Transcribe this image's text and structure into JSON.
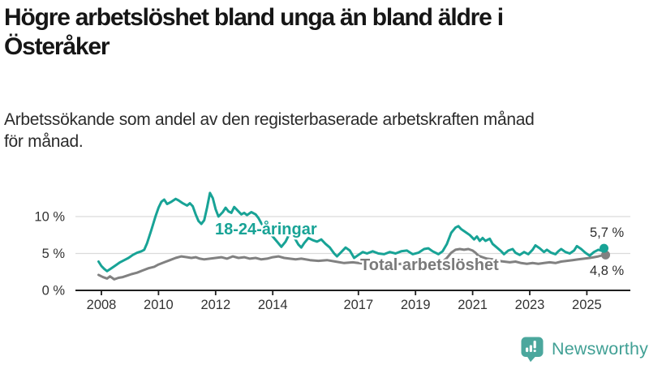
{
  "header": {
    "title_lines": [
      "Högre arbetslöshet bland unga än bland äldre i",
      "Österåker"
    ],
    "subtitle_lines": [
      "Arbetssökande som andel av den registerbaserade arbetskraften månad",
      "för månad."
    ]
  },
  "chart_data": {
    "type": "line",
    "title": "Högre arbetslöshet bland unga än bland äldre i Österåker",
    "subtitle": "Arbetssökande som andel av den registerbaserade arbetskraften månad för månad.",
    "unit": "%",
    "grid": "horizontal-gridlines-at-5-and-10",
    "legend_position": "inline-labels",
    "xlim": [
      2007.1,
      2026.5
    ],
    "ylim": [
      0,
      14.3
    ],
    "x_ticks": [
      2008,
      2010,
      2012,
      2014,
      2017,
      2019,
      2021,
      2023,
      2025
    ],
    "y_ticks": [
      {
        "value": 0,
        "label": "0 %"
      },
      {
        "value": 5,
        "label": "5 %"
      },
      {
        "value": 10,
        "label": "10 %"
      }
    ],
    "colors": {
      "young": "#18a396",
      "total": "#818181",
      "axis": "#1e1e1e",
      "gridline": "#dbdbdb",
      "tick_text": "#333333",
      "end_label_text": "#2e2e2e"
    },
    "series": [
      {
        "name": "18-24-åringar",
        "color": "#18a396",
        "label_color": "#18a396",
        "end_label": "5,7 %",
        "end_value": 5.7,
        "points": [
          [
            2007.9,
            3.9
          ],
          [
            2008.0,
            3.3
          ],
          [
            2008.1,
            2.9
          ],
          [
            2008.2,
            2.6
          ],
          [
            2008.35,
            3.0
          ],
          [
            2008.5,
            3.4
          ],
          [
            2008.65,
            3.8
          ],
          [
            2008.8,
            4.1
          ],
          [
            2008.95,
            4.4
          ],
          [
            2009.1,
            4.8
          ],
          [
            2009.25,
            5.1
          ],
          [
            2009.4,
            5.3
          ],
          [
            2009.5,
            5.5
          ],
          [
            2009.6,
            6.4
          ],
          [
            2009.75,
            8.2
          ],
          [
            2009.9,
            10.1
          ],
          [
            2010.0,
            11.2
          ],
          [
            2010.1,
            12.0
          ],
          [
            2010.2,
            12.3
          ],
          [
            2010.3,
            11.7
          ],
          [
            2010.45,
            12.0
          ],
          [
            2010.6,
            12.4
          ],
          [
            2010.7,
            12.2
          ],
          [
            2010.85,
            11.8
          ],
          [
            2011.0,
            11.5
          ],
          [
            2011.1,
            11.8
          ],
          [
            2011.2,
            11.4
          ],
          [
            2011.3,
            10.3
          ],
          [
            2011.4,
            9.4
          ],
          [
            2011.5,
            9.0
          ],
          [
            2011.6,
            9.5
          ],
          [
            2011.7,
            11.2
          ],
          [
            2011.8,
            13.2
          ],
          [
            2011.9,
            12.5
          ],
          [
            2012.0,
            11.0
          ],
          [
            2012.1,
            10.0
          ],
          [
            2012.25,
            10.6
          ],
          [
            2012.35,
            11.2
          ],
          [
            2012.45,
            10.7
          ],
          [
            2012.55,
            10.5
          ],
          [
            2012.65,
            11.3
          ],
          [
            2012.75,
            10.9
          ],
          [
            2012.9,
            10.3
          ],
          [
            2013.0,
            10.5
          ],
          [
            2013.1,
            10.2
          ],
          [
            2013.25,
            10.6
          ],
          [
            2013.4,
            10.3
          ],
          [
            2013.5,
            9.8
          ],
          [
            2013.6,
            9.1
          ],
          [
            2013.75,
            8.3
          ],
          [
            2013.9,
            7.7
          ],
          [
            2014.0,
            7.3
          ],
          [
            2014.15,
            6.6
          ],
          [
            2014.3,
            5.9
          ],
          [
            2014.45,
            6.6
          ],
          [
            2014.55,
            7.4
          ],
          [
            2014.65,
            7.8
          ],
          [
            2014.75,
            7.2
          ],
          [
            2014.9,
            6.2
          ],
          [
            2015.0,
            5.8
          ],
          [
            2015.1,
            6.4
          ],
          [
            2015.25,
            7.1
          ],
          [
            2015.4,
            6.8
          ],
          [
            2015.55,
            6.6
          ],
          [
            2015.7,
            6.9
          ],
          [
            2015.85,
            6.3
          ],
          [
            2016.0,
            5.8
          ],
          [
            2016.15,
            5.0
          ],
          [
            2016.25,
            4.6
          ],
          [
            2016.4,
            5.2
          ],
          [
            2016.55,
            5.8
          ],
          [
            2016.7,
            5.4
          ],
          [
            2016.85,
            4.4
          ],
          [
            2017.0,
            4.8
          ],
          [
            2017.15,
            5.2
          ],
          [
            2017.3,
            5.0
          ],
          [
            2017.5,
            5.3
          ],
          [
            2017.7,
            5.0
          ],
          [
            2017.9,
            4.9
          ],
          [
            2018.1,
            5.2
          ],
          [
            2018.3,
            5.0
          ],
          [
            2018.5,
            5.3
          ],
          [
            2018.7,
            5.4
          ],
          [
            2018.9,
            4.9
          ],
          [
            2019.1,
            5.1
          ],
          [
            2019.3,
            5.6
          ],
          [
            2019.45,
            5.7
          ],
          [
            2019.6,
            5.3
          ],
          [
            2019.8,
            4.9
          ],
          [
            2019.95,
            5.3
          ],
          [
            2020.1,
            6.3
          ],
          [
            2020.25,
            7.8
          ],
          [
            2020.4,
            8.5
          ],
          [
            2020.5,
            8.7
          ],
          [
            2020.6,
            8.3
          ],
          [
            2020.75,
            7.9
          ],
          [
            2020.9,
            7.5
          ],
          [
            2021.05,
            6.9
          ],
          [
            2021.15,
            7.3
          ],
          [
            2021.25,
            6.7
          ],
          [
            2021.35,
            7.1
          ],
          [
            2021.45,
            6.7
          ],
          [
            2021.6,
            7.0
          ],
          [
            2021.7,
            6.3
          ],
          [
            2021.85,
            5.8
          ],
          [
            2022.0,
            5.3
          ],
          [
            2022.1,
            4.9
          ],
          [
            2022.25,
            5.4
          ],
          [
            2022.4,
            5.6
          ],
          [
            2022.5,
            5.1
          ],
          [
            2022.65,
            4.8
          ],
          [
            2022.8,
            5.2
          ],
          [
            2022.95,
            4.9
          ],
          [
            2023.1,
            5.5
          ],
          [
            2023.2,
            6.1
          ],
          [
            2023.35,
            5.7
          ],
          [
            2023.5,
            5.2
          ],
          [
            2023.6,
            5.5
          ],
          [
            2023.75,
            5.1
          ],
          [
            2023.9,
            4.9
          ],
          [
            2024.0,
            5.3
          ],
          [
            2024.1,
            5.6
          ],
          [
            2024.25,
            5.2
          ],
          [
            2024.4,
            5.0
          ],
          [
            2024.55,
            5.4
          ],
          [
            2024.65,
            6.0
          ],
          [
            2024.8,
            5.6
          ],
          [
            2024.95,
            5.1
          ],
          [
            2025.1,
            4.7
          ],
          [
            2025.25,
            5.2
          ],
          [
            2025.4,
            5.5
          ],
          [
            2025.5,
            5.4
          ],
          [
            2025.6,
            5.7
          ]
        ]
      },
      {
        "name": "Total arbetslöshet",
        "color": "#818181",
        "label_color": "#7a7a7a",
        "end_label": "4,8 %",
        "end_value": 4.8,
        "points": [
          [
            2007.9,
            2.1
          ],
          [
            2008.05,
            1.8
          ],
          [
            2008.2,
            1.6
          ],
          [
            2008.3,
            1.9
          ],
          [
            2008.45,
            1.5
          ],
          [
            2008.6,
            1.7
          ],
          [
            2008.75,
            1.8
          ],
          [
            2008.9,
            2.0
          ],
          [
            2009.05,
            2.2
          ],
          [
            2009.25,
            2.4
          ],
          [
            2009.45,
            2.7
          ],
          [
            2009.65,
            3.0
          ],
          [
            2009.85,
            3.2
          ],
          [
            2010.0,
            3.5
          ],
          [
            2010.2,
            3.8
          ],
          [
            2010.4,
            4.1
          ],
          [
            2010.6,
            4.4
          ],
          [
            2010.8,
            4.6
          ],
          [
            2011.0,
            4.5
          ],
          [
            2011.15,
            4.4
          ],
          [
            2011.3,
            4.5
          ],
          [
            2011.45,
            4.3
          ],
          [
            2011.6,
            4.2
          ],
          [
            2011.8,
            4.3
          ],
          [
            2012.0,
            4.4
          ],
          [
            2012.2,
            4.5
          ],
          [
            2012.4,
            4.3
          ],
          [
            2012.6,
            4.6
          ],
          [
            2012.8,
            4.4
          ],
          [
            2013.0,
            4.5
          ],
          [
            2013.2,
            4.3
          ],
          [
            2013.4,
            4.4
          ],
          [
            2013.6,
            4.2
          ],
          [
            2013.8,
            4.3
          ],
          [
            2014.0,
            4.5
          ],
          [
            2014.2,
            4.6
          ],
          [
            2014.4,
            4.4
          ],
          [
            2014.6,
            4.3
          ],
          [
            2014.8,
            4.2
          ],
          [
            2015.0,
            4.3
          ],
          [
            2015.3,
            4.1
          ],
          [
            2015.6,
            4.0
          ],
          [
            2015.9,
            4.1
          ],
          [
            2016.2,
            3.9
          ],
          [
            2016.5,
            3.7
          ],
          [
            2016.8,
            3.8
          ],
          [
            2017.0,
            3.7
          ],
          [
            2017.3,
            3.6
          ],
          [
            2017.6,
            3.5
          ],
          [
            2017.9,
            3.6
          ],
          [
            2018.2,
            3.5
          ],
          [
            2018.5,
            3.6
          ],
          [
            2018.8,
            3.5
          ],
          [
            2019.0,
            3.7
          ],
          [
            2019.2,
            3.8
          ],
          [
            2019.4,
            3.7
          ],
          [
            2019.6,
            3.6
          ],
          [
            2019.8,
            3.7
          ],
          [
            2019.95,
            3.9
          ],
          [
            2020.1,
            4.4
          ],
          [
            2020.25,
            5.1
          ],
          [
            2020.4,
            5.5
          ],
          [
            2020.55,
            5.6
          ],
          [
            2020.7,
            5.5
          ],
          [
            2020.85,
            5.6
          ],
          [
            2021.0,
            5.4
          ],
          [
            2021.1,
            5.1
          ],
          [
            2021.2,
            4.7
          ],
          [
            2021.35,
            4.5
          ],
          [
            2021.5,
            4.3
          ],
          [
            2021.7,
            4.2
          ],
          [
            2021.9,
            4.0
          ],
          [
            2022.1,
            3.9
          ],
          [
            2022.3,
            3.8
          ],
          [
            2022.5,
            3.9
          ],
          [
            2022.7,
            3.7
          ],
          [
            2022.9,
            3.6
          ],
          [
            2023.1,
            3.7
          ],
          [
            2023.3,
            3.6
          ],
          [
            2023.5,
            3.7
          ],
          [
            2023.7,
            3.8
          ],
          [
            2023.9,
            3.7
          ],
          [
            2024.1,
            3.9
          ],
          [
            2024.3,
            4.0
          ],
          [
            2024.5,
            4.1
          ],
          [
            2024.7,
            4.2
          ],
          [
            2024.9,
            4.3
          ],
          [
            2025.1,
            4.4
          ],
          [
            2025.25,
            4.5
          ],
          [
            2025.4,
            4.6
          ],
          [
            2025.6,
            4.8
          ]
        ]
      }
    ]
  },
  "footer": {
    "brand": "Newsworthy"
  }
}
